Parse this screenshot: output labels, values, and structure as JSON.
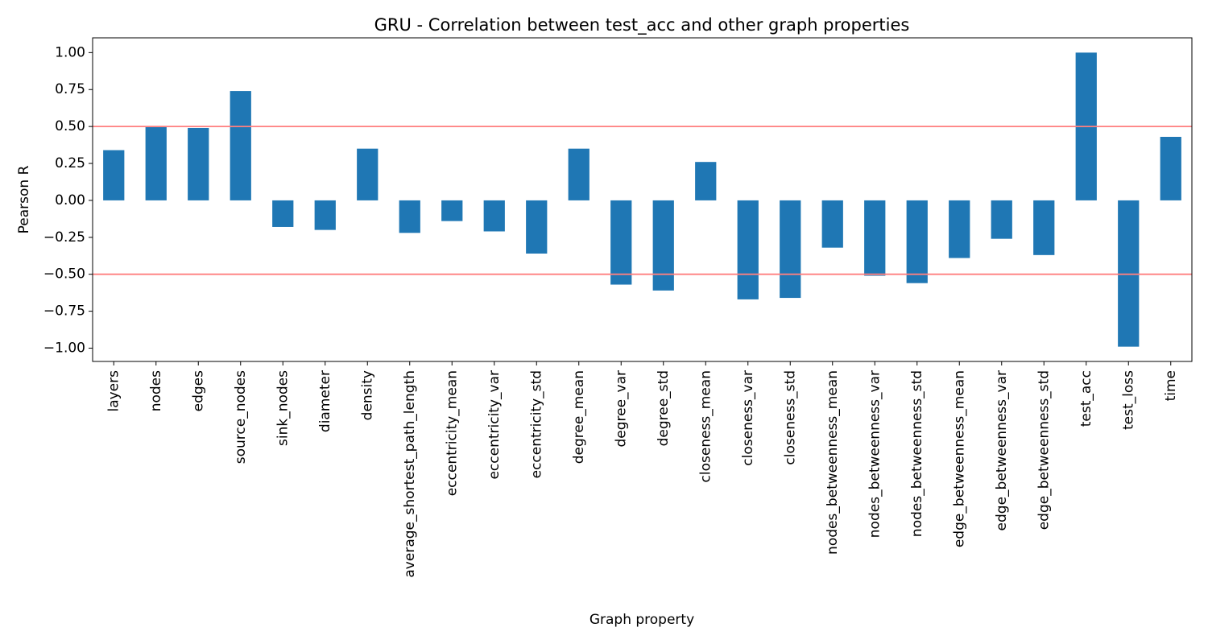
{
  "chart_data": {
    "type": "bar",
    "title": "GRU - Correlation between test_acc and other graph properties",
    "xlabel": "Graph property",
    "ylabel": "Pearson R",
    "ylim": [
      -1.09,
      1.1
    ],
    "yticks": [
      1.0,
      0.75,
      0.5,
      0.25,
      0.0,
      -0.25,
      -0.5,
      -0.75,
      -1.0
    ],
    "ytick_labels": [
      "1.00",
      "0.75",
      "0.50",
      "0.25",
      "0.00",
      "−0.25",
      "−0.50",
      "−0.75",
      "−1.00"
    ],
    "categories": [
      "layers",
      "nodes",
      "edges",
      "source_nodes",
      "sink_nodes",
      "diameter",
      "density",
      "average_shortest_path_length",
      "eccentricity_mean",
      "eccentricity_var",
      "eccentricity_std",
      "degree_mean",
      "degree_var",
      "degree_std",
      "closeness_mean",
      "closeness_var",
      "closeness_std",
      "nodes_betweenness_mean",
      "nodes_betweenness_var",
      "nodes_betweenness_std",
      "edge_betweenness_mean",
      "edge_betweenness_var",
      "edge_betweenness_std",
      "test_acc",
      "test_loss",
      "time"
    ],
    "values": [
      0.34,
      0.5,
      0.49,
      0.74,
      -0.18,
      -0.2,
      0.35,
      -0.22,
      -0.14,
      -0.21,
      -0.36,
      0.35,
      -0.57,
      -0.61,
      0.26,
      -0.67,
      -0.66,
      -0.32,
      -0.51,
      -0.56,
      -0.39,
      -0.26,
      -0.37,
      1.0,
      -0.99,
      0.43
    ],
    "reference_lines": [
      0.5,
      -0.5
    ],
    "grid": false,
    "legend": "none",
    "colors": {
      "bar": "#1f77b4",
      "reference_line": "#ff7f7f"
    }
  }
}
